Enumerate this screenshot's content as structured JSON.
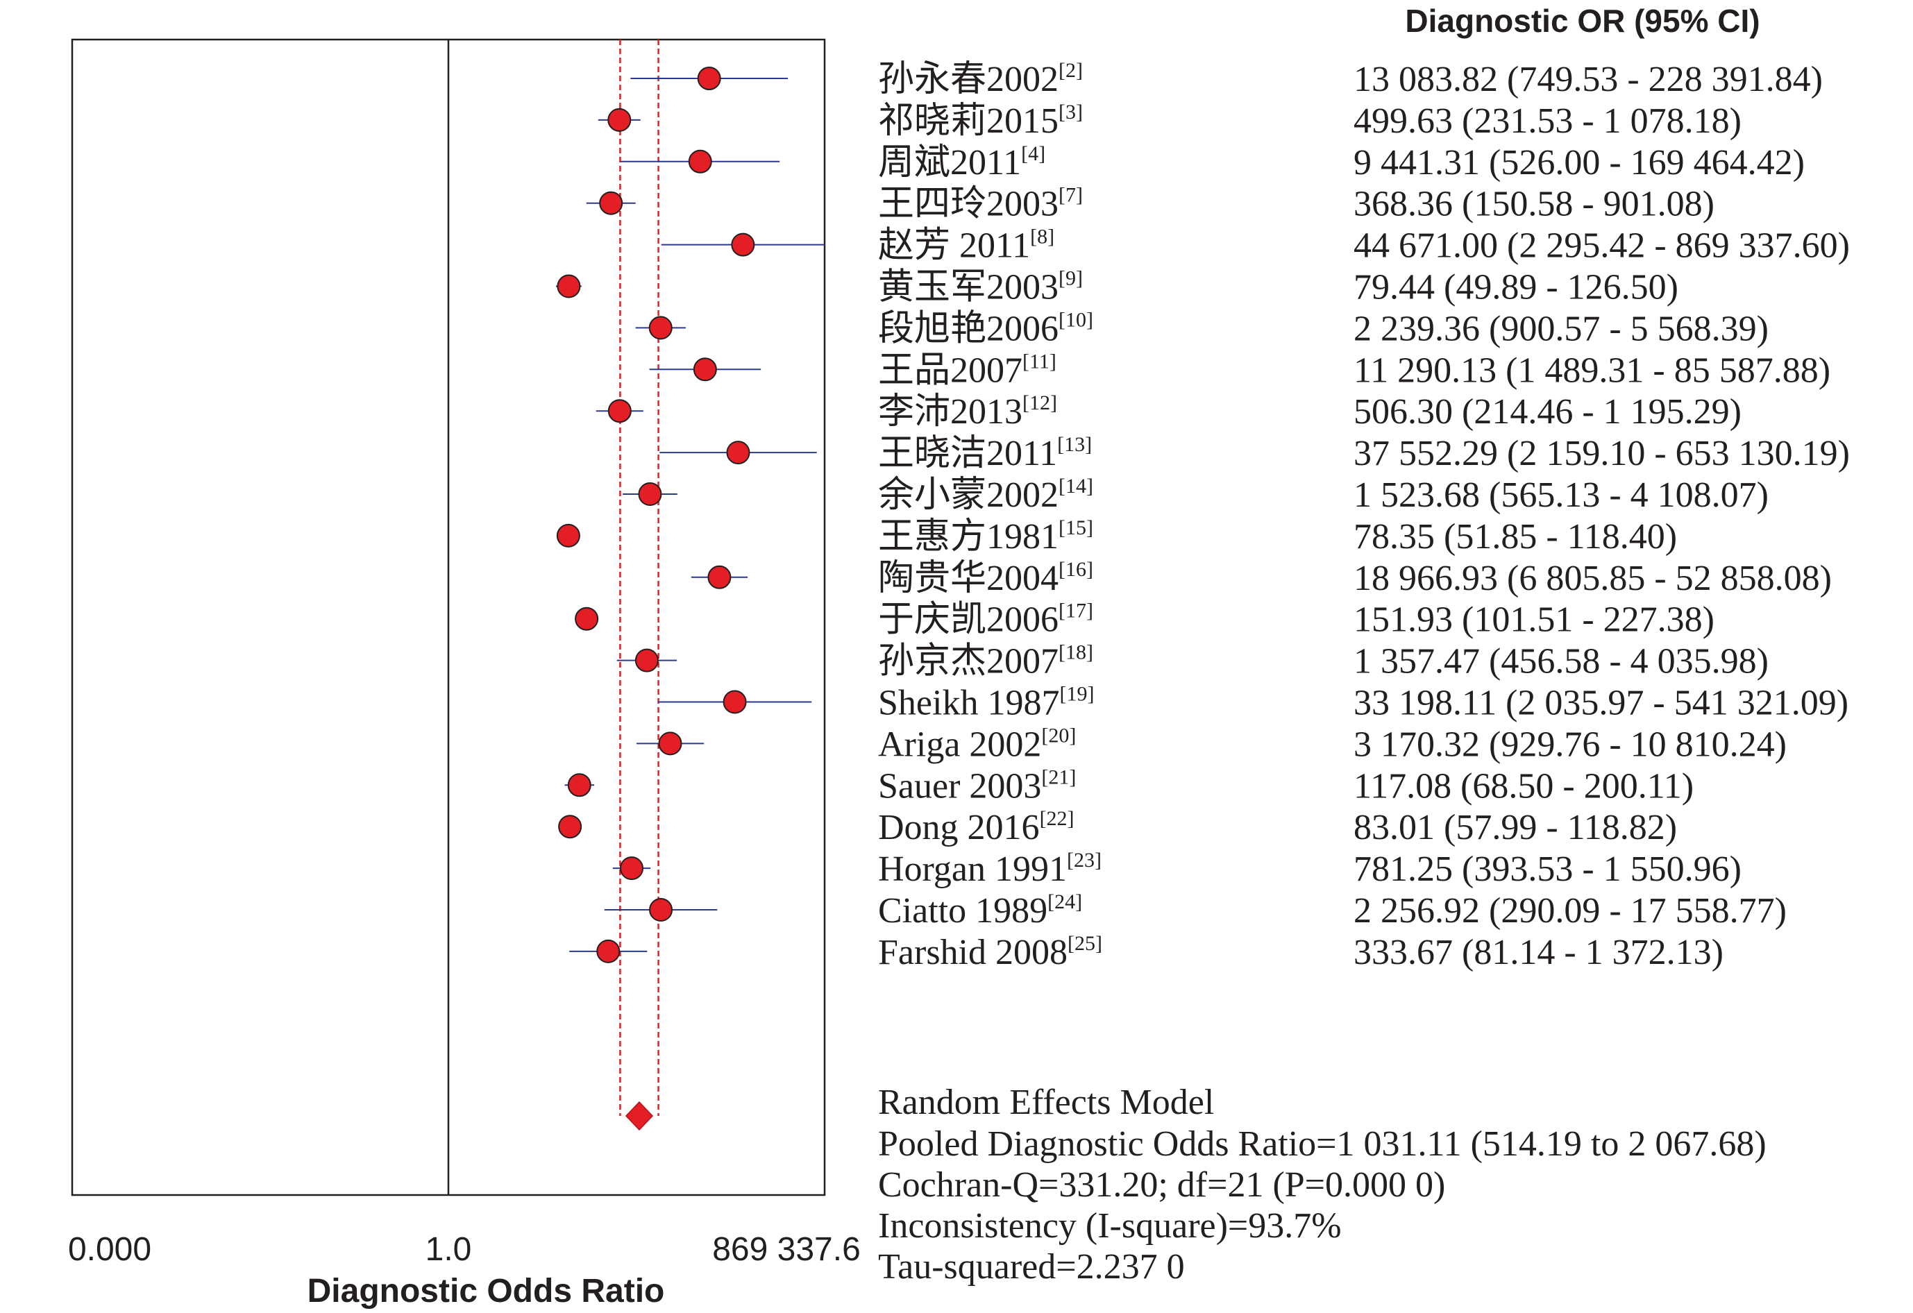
{
  "chart_data": {
    "type": "forest",
    "column_header": "Diagnostic OR (95% CI)",
    "xlabel": "Diagnostic Odds Ratio",
    "x_scale": "log",
    "x_ticks": [
      "0.000",
      "1.0",
      "869 337.6"
    ],
    "xlim": [
      1.15e-06,
      869337.6
    ],
    "studies": [
      {
        "name": "孙永春2002",
        "ref": "[2]",
        "or": 13083.82,
        "lo": 749.53,
        "hi": 228391.84,
        "text": "13 083.82 (749.53 - 228 391.84)"
      },
      {
        "name": "祁晓莉2015",
        "ref": "[3]",
        "or": 499.63,
        "lo": 231.53,
        "hi": 1078.18,
        "text": "499.63 (231.53 - 1 078.18)"
      },
      {
        "name": "周斌2011",
        "ref": "[4]",
        "or": 9441.31,
        "lo": 526.0,
        "hi": 169464.42,
        "text": "9 441.31 (526.00 - 169 464.42)"
      },
      {
        "name": "王四玲2003",
        "ref": "[7]",
        "or": 368.36,
        "lo": 150.58,
        "hi": 901.08,
        "text": "368.36 (150.58 - 901.08)"
      },
      {
        "name": "赵芳 2011",
        "ref": "[8]",
        "or": 44671.0,
        "lo": 2295.42,
        "hi": 869337.6,
        "text": "44 671.00 (2 295.42 - 869 337.60)"
      },
      {
        "name": "黄玉军2003",
        "ref": "[9]",
        "or": 79.44,
        "lo": 49.89,
        "hi": 126.5,
        "text": "79.44 (49.89 - 126.50)"
      },
      {
        "name": "段旭艳2006",
        "ref": "[10]",
        "or": 2239.36,
        "lo": 900.57,
        "hi": 5568.39,
        "text": "2 239.36 (900.57 - 5 568.39)"
      },
      {
        "name": "王品2007",
        "ref": "[11]",
        "or": 11290.13,
        "lo": 1489.31,
        "hi": 85587.88,
        "text": "11 290.13 (1 489.31 - 85 587.88)"
      },
      {
        "name": "李沛2013",
        "ref": "[12]",
        "or": 506.3,
        "lo": 214.46,
        "hi": 1195.29,
        "text": "506.30 (214.46 - 1 195.29)"
      },
      {
        "name": "王晓洁2011",
        "ref": "[13]",
        "or": 37552.29,
        "lo": 2159.1,
        "hi": 653130.19,
        "text": "37 552.29 (2 159.10 - 653 130.19)"
      },
      {
        "name": "余小蒙2002",
        "ref": "[14]",
        "or": 1523.68,
        "lo": 565.13,
        "hi": 4108.07,
        "text": "1 523.68 (565.13 - 4 108.07)"
      },
      {
        "name": "王惠方1981",
        "ref": "[15]",
        "or": 78.35,
        "lo": 51.85,
        "hi": 118.4,
        "text": "78.35 (51.85 - 118.40)"
      },
      {
        "name": "陶贵华2004",
        "ref": "[16]",
        "or": 18966.93,
        "lo": 6805.85,
        "hi": 52858.08,
        "text": "18 966.93 (6 805.85 - 52 858.08)"
      },
      {
        "name": "于庆凯2006",
        "ref": "[17]",
        "or": 151.93,
        "lo": 101.51,
        "hi": 227.38,
        "text": "151.93 (101.51 - 227.38)"
      },
      {
        "name": "孙京杰2007",
        "ref": "[18]",
        "or": 1357.47,
        "lo": 456.58,
        "hi": 4035.98,
        "text": "1 357.47 (456.58 - 4 035.98)"
      },
      {
        "name": "Sheikh 1987",
        "ref": "[19]",
        "or": 33198.11,
        "lo": 2035.97,
        "hi": 541321.09,
        "text": "33 198.11 (2 035.97 - 541 321.09)"
      },
      {
        "name": "Ariga 2002",
        "ref": "[20]",
        "or": 3170.32,
        "lo": 929.76,
        "hi": 10810.24,
        "text": "3 170.32 (929.76 - 10 810.24)"
      },
      {
        "name": "Sauer 2003",
        "ref": "[21]",
        "or": 117.08,
        "lo": 68.5,
        "hi": 200.11,
        "text": "117.08 (68.50 - 200.11)"
      },
      {
        "name": "Dong 2016",
        "ref": "[22]",
        "or": 83.01,
        "lo": 57.99,
        "hi": 118.82,
        "text": "83.01 (57.99 - 118.82)"
      },
      {
        "name": "Horgan 1991",
        "ref": "[23]",
        "or": 781.25,
        "lo": 393.53,
        "hi": 1550.96,
        "text": "781.25 (393.53 - 1 550.96)"
      },
      {
        "name": "Ciatto 1989",
        "ref": "[24]",
        "or": 2256.92,
        "lo": 290.09,
        "hi": 17558.77,
        "text": "2 256.92 (290.09 - 17 558.77)"
      },
      {
        "name": "Farshid 2008",
        "ref": "[25]",
        "or": 333.67,
        "lo": 81.14,
        "hi": 1372.13,
        "text": "333.67 (81.14 - 1 372.13)"
      }
    ],
    "pooled": {
      "or": 1031.11,
      "lo": 514.19,
      "hi": 2067.68
    },
    "summary_lines": [
      "Random Effects Model",
      "Pooled Diagnostic Odds Ratio=1 031.11 (514.19 to 2 067.68)",
      "Cochran-Q=331.20; df=21 (P=0.000 0)",
      "Inconsistency (I-square)=93.7%",
      "Tau-squared=2.237 0"
    ],
    "colors": {
      "point": "#e31e24",
      "ci_line": "#2b3a8c",
      "pooled_ref": "#e31e24",
      "frame": "#231f20",
      "text": "#231f20"
    }
  }
}
